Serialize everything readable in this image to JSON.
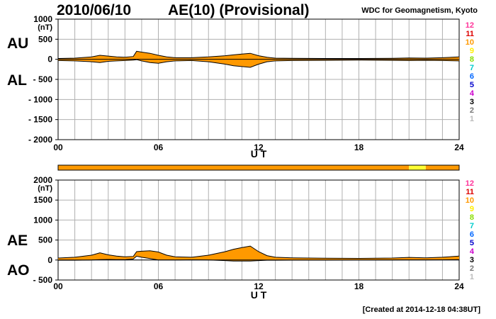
{
  "header": {
    "date": "2010/06/10",
    "title": "AE(10) (Provisional)",
    "source": "WDC for Geomagnetism, Kyoto"
  },
  "footer": {
    "created": "[Created at 2014-12-18 04:38UT]"
  },
  "chart_data": [
    {
      "type": "area",
      "name": "AU/AL",
      "labels_upper": "AU",
      "labels_lower": "AL",
      "unit": "(nT)",
      "ylim": [
        -2000,
        1000
      ],
      "yticks": [
        1000,
        500,
        0,
        -500,
        -1000,
        -1500,
        -2000
      ],
      "ytick_labels": [
        "1000",
        "500",
        "0",
        "- 500",
        "- 1000",
        "- 1500",
        "- 2000"
      ],
      "xlim": [
        0,
        24
      ],
      "xticks": [
        0,
        6,
        12,
        18,
        24
      ],
      "xtick_labels": [
        "00",
        "06",
        "12",
        "18",
        "24"
      ],
      "xlabel": "U T",
      "fill_color": "#ff9900",
      "x": [
        0,
        1,
        2,
        2.5,
        3,
        3.5,
        4,
        4.5,
        4.7,
        5,
        5.5,
        6,
        6.5,
        7,
        8,
        9,
        10,
        10.5,
        11,
        11.5,
        12,
        12.5,
        13,
        14,
        16,
        18,
        20,
        21,
        22,
        23,
        24
      ],
      "series": [
        {
          "name": "AU",
          "values": [
            20,
            30,
            60,
            100,
            80,
            60,
            50,
            70,
            200,
            180,
            150,
            100,
            60,
            40,
            40,
            60,
            90,
            110,
            130,
            150,
            90,
            50,
            30,
            25,
            20,
            20,
            25,
            35,
            30,
            40,
            60
          ]
        },
        {
          "name": "AL",
          "values": [
            -30,
            -40,
            -60,
            -80,
            -50,
            -40,
            -30,
            -20,
            -10,
            -40,
            -80,
            -100,
            -60,
            -40,
            -30,
            -60,
            -120,
            -160,
            -180,
            -200,
            -120,
            -60,
            -40,
            -30,
            -25,
            -20,
            -25,
            -30,
            -25,
            -30,
            -40
          ]
        }
      ]
    },
    {
      "type": "area",
      "name": "AE/AO",
      "labels_upper": "AE",
      "labels_lower": "AO",
      "unit": "(nT)",
      "ylim": [
        -500,
        2000
      ],
      "yticks": [
        2000,
        1500,
        1000,
        500,
        0,
        -500
      ],
      "ytick_labels": [
        "2000",
        "1500",
        "1000",
        "500",
        "0",
        "- 500"
      ],
      "xlim": [
        0,
        24
      ],
      "xticks": [
        0,
        6,
        12,
        18,
        24
      ],
      "xtick_labels": [
        "00",
        "06",
        "12",
        "18",
        "24"
      ],
      "xlabel": "U T",
      "fill_color": "#ff9900",
      "x": [
        0,
        1,
        2,
        2.5,
        3,
        3.5,
        4,
        4.5,
        4.7,
        5,
        5.5,
        6,
        6.5,
        7,
        8,
        9,
        10,
        10.5,
        11,
        11.5,
        12,
        12.5,
        13,
        14,
        16,
        18,
        20,
        21,
        22,
        23,
        24
      ],
      "series": [
        {
          "name": "AE",
          "values": [
            50,
            70,
            120,
            180,
            130,
            100,
            80,
            90,
            210,
            220,
            230,
            200,
            120,
            80,
            70,
            120,
            210,
            270,
            310,
            350,
            210,
            110,
            70,
            55,
            45,
            40,
            50,
            65,
            55,
            70,
            100
          ]
        },
        {
          "name": "AO",
          "values": [
            -5,
            -5,
            0,
            10,
            15,
            10,
            10,
            25,
            95,
            70,
            35,
            0,
            0,
            0,
            5,
            0,
            -15,
            -25,
            -25,
            -25,
            -15,
            -5,
            -5,
            -3,
            -3,
            0,
            0,
            3,
            3,
            5,
            10
          ]
        }
      ]
    }
  ],
  "station_bar": {
    "segments": [
      {
        "start": 0,
        "end": 21,
        "color": "#ff9900"
      },
      {
        "start": 21,
        "end": 22,
        "color": "#ffff33"
      },
      {
        "start": 22,
        "end": 24,
        "color": "#ff9900"
      }
    ]
  },
  "station_legend": {
    "labels": [
      "12",
      "11",
      "10",
      "9",
      "8",
      "7",
      "6",
      "5",
      "4",
      "3",
      "2",
      "1"
    ],
    "colors": [
      "#ff3399",
      "#dd0000",
      "#ff9900",
      "#ffee00",
      "#88dd00",
      "#00cccc",
      "#0066ff",
      "#0000cc",
      "#cc00cc",
      "#000000",
      "#777777",
      "#bbbbbb"
    ]
  }
}
